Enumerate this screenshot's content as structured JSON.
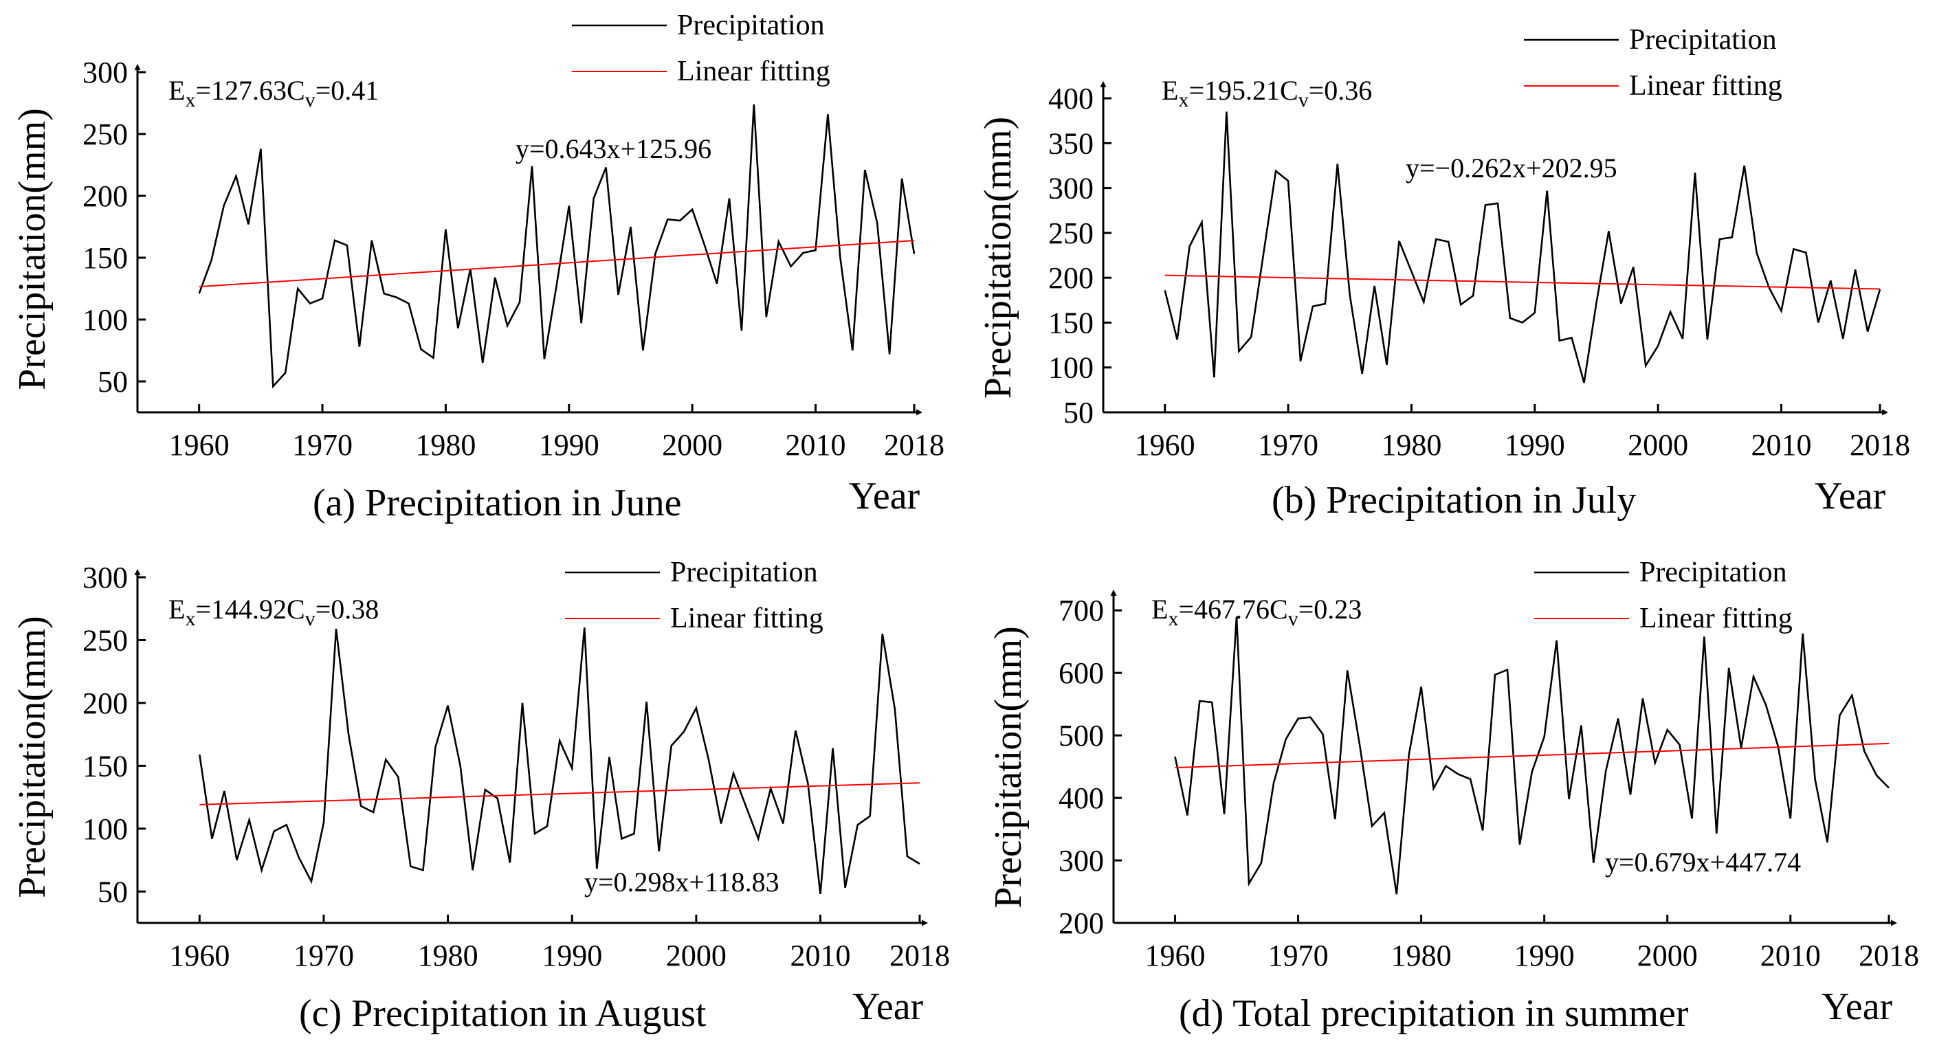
{
  "legend": {
    "precipitation_label": "Precipitation",
    "fit_label": "Linear fitting",
    "precipitation_color": "#000000",
    "fit_color": "#ff0000"
  },
  "chart_data": [
    {
      "id": "a",
      "type": "line",
      "caption": "(a) Precipitation in June",
      "ylabel": "Precipitation(mm)",
      "xlabel": "Year",
      "xlim": [
        1955,
        2018
      ],
      "xticks": [
        1960,
        1970,
        1980,
        1990,
        2000,
        2010,
        2018
      ],
      "ylim": [
        25,
        300
      ],
      "yticks": [
        50,
        100,
        150,
        200,
        250,
        300
      ],
      "stats": {
        "ex_label": "E",
        "ex_sub": "x",
        "ex_value": "=127.63",
        "cv_label": "C",
        "cv_sub": "v",
        "cv_value": "=0.41"
      },
      "equation": "y=0.643x+125.96",
      "fit": {
        "slope": 0.643,
        "intercept": 125.96
      },
      "series": [
        {
          "name": "Precipitation",
          "x": [
            1960,
            1961,
            1962,
            1963,
            1964,
            1965,
            1966,
            1967,
            1968,
            1969,
            1970,
            1971,
            1972,
            1973,
            1974,
            1975,
            1976,
            1977,
            1978,
            1979,
            1980,
            1981,
            1982,
            1983,
            1984,
            1985,
            1986,
            1987,
            1988,
            1989,
            1990,
            1991,
            1992,
            1993,
            1994,
            1995,
            1996,
            1997,
            1998,
            1999,
            2000,
            2001,
            2002,
            2003,
            2004,
            2005,
            2006,
            2007,
            2008,
            2009,
            2010,
            2011,
            2012,
            2013,
            2014,
            2015,
            2016,
            2017,
            2018
          ],
          "values": [
            121,
            148,
            192,
            216,
            177,
            238,
            46,
            57,
            125,
            113,
            117,
            164,
            160,
            78,
            164,
            121,
            118,
            113,
            76,
            69,
            173,
            93,
            141,
            65,
            134,
            95,
            114,
            224,
            68,
            128,
            192,
            97,
            198,
            223,
            120,
            175,
            75,
            153,
            181,
            180,
            189,
            160,
            129,
            198,
            91,
            274,
            102,
            163,
            143,
            154,
            156,
            266,
            150,
            75,
            221,
            178,
            72,
            214,
            153
          ]
        },
        {
          "name": "Linear fitting",
          "x": [
            1960,
            2018
          ],
          "values": [
            126.6,
            163.9
          ]
        }
      ]
    },
    {
      "id": "b",
      "type": "line",
      "caption": "(b) Precipitation in July",
      "ylabel": "Precipitation(mm)",
      "xlabel": "Year",
      "xlim": [
        1955,
        2018
      ],
      "xticks": [
        1960,
        1970,
        1980,
        1990,
        2000,
        2010,
        2018
      ],
      "ylim": [
        50,
        410
      ],
      "yticks": [
        50,
        100,
        150,
        200,
        250,
        300,
        350,
        400
      ],
      "stats": {
        "ex_label": "E",
        "ex_sub": "x",
        "ex_value": "=195.21",
        "cv_label": "C",
        "cv_sub": "v",
        "cv_value": "=0.36"
      },
      "equation": "y=−0.262x+202.95",
      "fit": {
        "slope": -0.262,
        "intercept": 202.95
      },
      "series": [
        {
          "name": "Precipitation",
          "x": [
            1960,
            1961,
            1962,
            1963,
            1964,
            1965,
            1966,
            1967,
            1968,
            1969,
            1970,
            1971,
            1972,
            1973,
            1974,
            1975,
            1976,
            1977,
            1978,
            1979,
            1980,
            1981,
            1982,
            1983,
            1984,
            1985,
            1986,
            1987,
            1988,
            1989,
            1990,
            1991,
            1992,
            1993,
            1994,
            1995,
            1996,
            1997,
            1998,
            1999,
            2000,
            2001,
            2002,
            2003,
            2004,
            2005,
            2006,
            2007,
            2008,
            2009,
            2010,
            2011,
            2012,
            2013,
            2014,
            2015,
            2016,
            2017,
            2018
          ],
          "values": [
            186,
            131,
            235,
            262,
            89,
            385,
            118,
            134,
            227,
            319,
            308,
            107,
            168,
            171,
            327,
            181,
            93,
            191,
            103,
            241,
            207,
            173,
            243,
            240,
            170,
            180,
            281,
            283,
            155,
            150,
            161,
            297,
            130,
            133,
            83,
            172,
            252,
            171,
            212,
            102,
            124,
            162,
            132,
            317,
            131,
            243,
            245,
            325,
            228,
            189,
            163,
            232,
            228,
            150,
            197,
            132,
            209,
            140,
            187
          ]
        },
        {
          "name": "Linear fitting",
          "x": [
            1960,
            2018
          ],
          "values": [
            202.7,
            187.5
          ]
        }
      ]
    },
    {
      "id": "c",
      "type": "line",
      "caption": "(c) Precipitation in August",
      "ylabel": "Precipitation(mm)",
      "xlabel": "Year",
      "xlim": [
        1955,
        2018
      ],
      "xticks": [
        1960,
        1970,
        1980,
        1990,
        2000,
        2010,
        2018
      ],
      "ylim": [
        25,
        300
      ],
      "yticks": [
        50,
        100,
        150,
        200,
        250,
        300
      ],
      "stats": {
        "ex_label": "E",
        "ex_sub": "x",
        "ex_value": "=144.92",
        "cv_label": "C",
        "cv_sub": "v",
        "cv_value": "=0.38"
      },
      "equation": "y=0.298x+118.83",
      "fit": {
        "slope": 0.298,
        "intercept": 118.83
      },
      "series": [
        {
          "name": "Precipitation",
          "x": [
            1960,
            1961,
            1962,
            1963,
            1964,
            1965,
            1966,
            1967,
            1968,
            1969,
            1970,
            1971,
            1972,
            1973,
            1974,
            1975,
            1976,
            1977,
            1978,
            1979,
            1980,
            1981,
            1982,
            1983,
            1984,
            1985,
            1986,
            1987,
            1988,
            1989,
            1990,
            1991,
            1992,
            1993,
            1994,
            1995,
            1996,
            1997,
            1998,
            1999,
            2000,
            2001,
            2002,
            2003,
            2004,
            2005,
            2006,
            2007,
            2008,
            2009,
            2010,
            2011,
            2012,
            2013,
            2014,
            2015,
            2016,
            2017,
            2018
          ],
          "values": [
            159,
            92,
            130,
            75,
            107,
            67,
            98,
            103,
            77,
            58,
            105,
            259,
            175,
            118,
            113,
            155,
            141,
            70,
            67,
            165,
            198,
            150,
            67,
            131,
            124,
            73,
            200,
            96,
            102,
            170,
            148,
            260,
            68,
            157,
            92,
            96,
            201,
            82,
            166,
            177,
            196,
            155,
            104,
            144,
            118,
            92,
            132,
            104,
            178,
            136,
            48,
            164,
            53,
            103,
            110,
            255,
            195,
            78,
            72
          ]
        },
        {
          "name": "Linear fitting",
          "x": [
            1960,
            2018
          ],
          "values": [
            119.1,
            136.4
          ]
        }
      ]
    },
    {
      "id": "d",
      "type": "line",
      "caption": "(d) Total precipitation in summer",
      "ylabel": "Precipitation(mm)",
      "xlabel": "Year",
      "xlim": [
        1955,
        2018
      ],
      "xticks": [
        1960,
        1970,
        1980,
        1990,
        2000,
        2010,
        2018
      ],
      "ylim": [
        200,
        720
      ],
      "yticks": [
        200,
        300,
        400,
        500,
        600,
        700
      ],
      "stats": {
        "ex_label": "E",
        "ex_sub": "x",
        "ex_value": "=467.76",
        "cv_label": "C",
        "cv_sub": "v",
        "cv_value": "=0.23"
      },
      "equation": "y=0.679x+447.74",
      "fit": {
        "slope": 0.679,
        "intercept": 447.74
      },
      "series": [
        {
          "name": "Precipitation",
          "x": [
            1960,
            1961,
            1962,
            1963,
            1964,
            1965,
            1966,
            1967,
            1968,
            1969,
            1970,
            1971,
            1972,
            1973,
            1974,
            1975,
            1976,
            1977,
            1978,
            1979,
            1980,
            1981,
            1982,
            1983,
            1984,
            1985,
            1986,
            1987,
            1988,
            1989,
            1990,
            1991,
            1992,
            1993,
            1994,
            1995,
            1996,
            1997,
            1998,
            1999,
            2000,
            2001,
            2002,
            2003,
            2004,
            2005,
            2006,
            2007,
            2008,
            2009,
            2010,
            2011,
            2012,
            2013,
            2014,
            2015,
            2016,
            2017,
            2018
          ],
          "values": [
            466,
            372,
            555,
            553,
            374,
            690,
            263,
            296,
            423,
            494,
            527,
            529,
            502,
            366,
            604,
            485,
            355,
            376,
            246,
            469,
            578,
            415,
            451,
            438,
            430,
            348,
            597,
            605,
            325,
            442,
            498,
            652,
            398,
            516,
            296,
            443,
            527,
            405,
            559,
            456,
            509,
            485,
            367,
            658,
            343,
            608,
            480,
            594,
            549,
            482,
            367,
            663,
            430,
            329,
            532,
            564,
            475,
            436,
            416
          ]
        },
        {
          "name": "Linear fitting",
          "x": [
            1960,
            2018
          ],
          "values": [
            448.4,
            487.1
          ]
        }
      ]
    }
  ]
}
